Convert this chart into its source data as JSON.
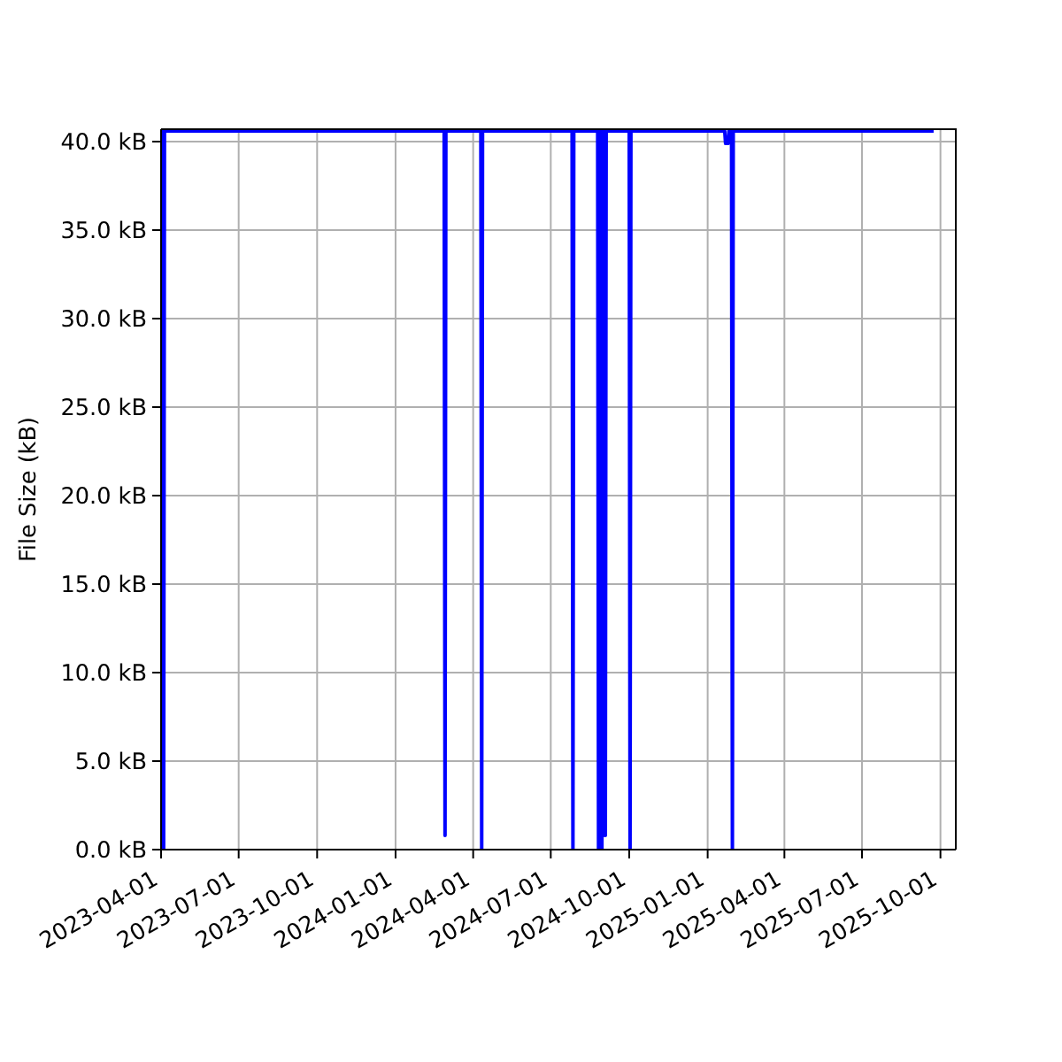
{
  "chart_data": {
    "type": "line",
    "ylabel": "File Size (kB)",
    "x": [
      "2023-04-01",
      "2023-04-02",
      "2023-04-03",
      "2023-04-04",
      "2023-04-05",
      "2024-02-27",
      "2024-02-28",
      "2024-02-29",
      "2024-04-10",
      "2024-04-11",
      "2024-04-12",
      "2024-07-26",
      "2024-07-27",
      "2024-07-28",
      "2024-08-25",
      "2024-08-26",
      "2024-08-27",
      "2024-08-28",
      "2024-08-29",
      "2024-08-30",
      "2024-08-31",
      "2024-09-01",
      "2024-09-02",
      "2024-09-03",
      "2024-09-04",
      "2024-10-01",
      "2024-10-02",
      "2024-10-03",
      "2025-01-21",
      "2025-01-22",
      "2025-01-25",
      "2025-01-26",
      "2025-01-29",
      "2025-01-30",
      "2025-01-31",
      "2025-09-23"
    ],
    "series": [
      {
        "color": "#0000ff",
        "values": [
          40.6,
          0,
          40.6,
          0,
          40.6,
          40.6,
          0.8,
          40.6,
          40.6,
          0,
          40.6,
          40.6,
          0,
          40.6,
          40.6,
          0,
          40.6,
          0,
          40.6,
          0,
          40.6,
          0.8,
          40.6,
          0.8,
          40.6,
          40.6,
          0,
          40.6,
          40.6,
          39.9,
          39.9,
          40.6,
          40.6,
          0,
          40.6,
          40.6
        ]
      }
    ],
    "xlim": [
      "2023-04-01",
      "2025-10-19"
    ],
    "xticks": [
      "2023-04-01",
      "2023-07-01",
      "2023-10-01",
      "2024-01-01",
      "2024-04-01",
      "2024-07-01",
      "2024-10-01",
      "2025-01-01",
      "2025-04-01",
      "2025-07-01",
      "2025-10-01"
    ],
    "ylim": [
      0,
      40.7
    ],
    "yticks": [
      {
        "value": 0,
        "label": "0.0 kB"
      },
      {
        "value": 5,
        "label": "5.0 kB"
      },
      {
        "value": 10,
        "label": "10.0 kB"
      },
      {
        "value": 15,
        "label": "15.0 kB"
      },
      {
        "value": 20,
        "label": "20.0 kB"
      },
      {
        "value": 25,
        "label": "25.0 kB"
      },
      {
        "value": 30,
        "label": "30.0 kB"
      },
      {
        "value": 35,
        "label": "35.0 kB"
      },
      {
        "value": 40,
        "label": "40.0 kB"
      }
    ],
    "grid": true
  }
}
